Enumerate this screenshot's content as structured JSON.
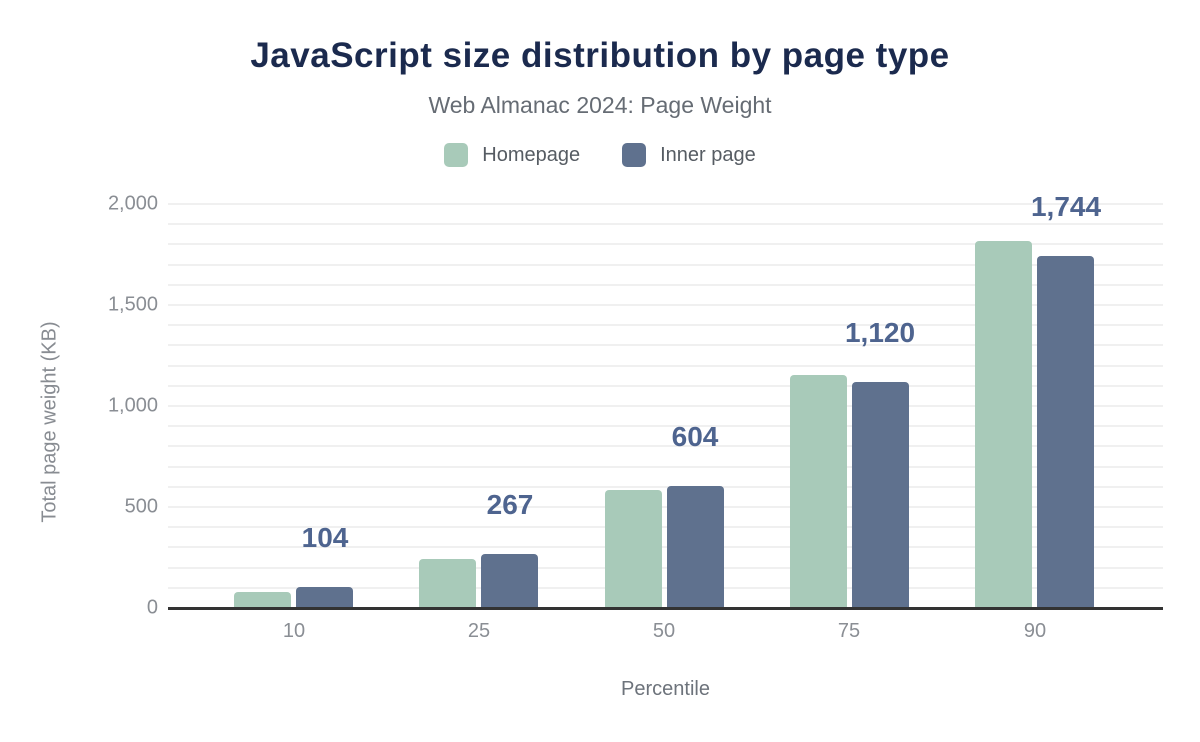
{
  "chart_data": {
    "type": "bar",
    "title": "JavaScript size distribution by page type",
    "subtitle": "Web Almanac 2024: Page Weight",
    "xlabel": "Percentile",
    "ylabel": "Total page weight (KB)",
    "categories": [
      "10",
      "25",
      "50",
      "75",
      "90"
    ],
    "series": [
      {
        "name": "Homepage",
        "color": "#a8cab9",
        "values": [
          80,
          245,
          585,
          1155,
          1815
        ]
      },
      {
        "name": "Inner page",
        "color": "#5f718e",
        "values": [
          104,
          267,
          604,
          1120,
          1744
        ]
      }
    ],
    "bar_labels": {
      "for_series": "Inner page",
      "values": [
        "104",
        "267",
        "604",
        "1,120",
        "1,744"
      ],
      "color": "#4e648f"
    },
    "ylim": [
      0,
      2000
    ],
    "y_ticks": [
      {
        "value": 0,
        "label": "0"
      },
      {
        "value": 500,
        "label": "500"
      },
      {
        "value": 1000,
        "label": "1,000"
      },
      {
        "value": 1500,
        "label": "1,500"
      },
      {
        "value": 2000,
        "label": "2,000"
      }
    ],
    "gridline_interval": 100,
    "grid": true,
    "legend_position": "top",
    "colors": {
      "title": "#1b2a4e",
      "subtitle": "#666c74",
      "axis_line": "#333333",
      "tick_label": "#8a8e94",
      "gridline": "#f0f0f0"
    }
  }
}
